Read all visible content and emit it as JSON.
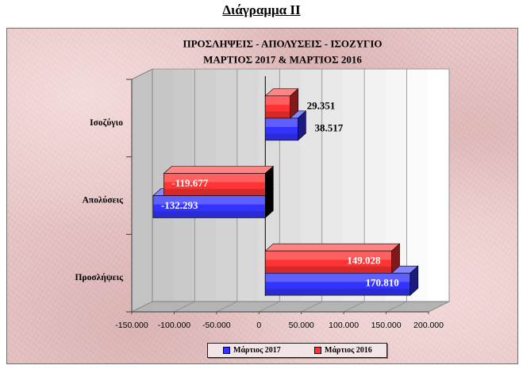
{
  "page_heading": "Διάγραμμα ΙΙ",
  "chart_data": {
    "type": "bar",
    "orientation": "horizontal",
    "three_d": true,
    "title": "ΠΡΟΣΛΗΨΕΙΣ - ΑΠΟΛΥΣΕΙΣ - ΙΣΟΖΥΓΙΟ",
    "subtitle": "ΜΑΡΤΙΟΣ 2017 & ΜΑΡΤΙΟΣ 2016",
    "categories": [
      "Προσλήψεις",
      "Απολύσεις",
      "Ισοζύγιο"
    ],
    "series": [
      {
        "name": "Μάρτιος 2017",
        "color": "#3333ff",
        "values": [
          170810,
          -132293,
          38517
        ]
      },
      {
        "name": "Μάρτιος 2016",
        "color": "#ff3333",
        "values": [
          149028,
          -119677,
          29351
        ]
      }
    ],
    "xticks": [
      -150000,
      -100000,
      -50000,
      0,
      50000,
      100000,
      150000,
      200000
    ],
    "xlim": [
      -150000,
      200000
    ],
    "data_labels": true,
    "grid": true,
    "legend_position": "bottom"
  }
}
